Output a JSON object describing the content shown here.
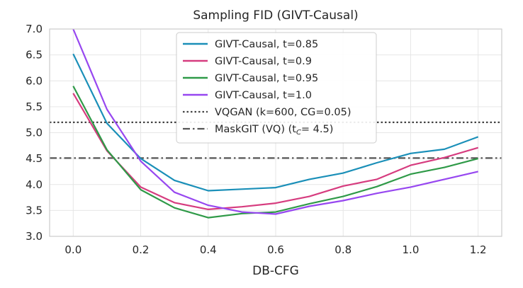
{
  "chart_data": {
    "type": "line",
    "title": "Sampling FID (GIVT-Causal)",
    "xlabel": "DB-CFG",
    "ylabel": "",
    "xlim": [
      -0.07,
      1.27
    ],
    "ylim": [
      3.0,
      7.0
    ],
    "xticks": [
      0.0,
      0.2,
      0.4,
      0.6,
      0.8,
      1.0,
      1.2
    ],
    "xtick_labels": [
      "0.0",
      "0.2",
      "0.4",
      "0.6",
      "0.8",
      "1.0",
      "1.2"
    ],
    "yticks": [
      3.0,
      3.5,
      4.0,
      4.5,
      5.0,
      5.5,
      6.0,
      6.5,
      7.0
    ],
    "ytick_labels": [
      "3.0",
      "3.5",
      "4.0",
      "4.5",
      "5.0",
      "5.5",
      "6.0",
      "6.5",
      "7.0"
    ],
    "grid": true,
    "legend_position": "top-center",
    "x": [
      0.0,
      0.1,
      0.2,
      0.3,
      0.4,
      0.5,
      0.6,
      0.7,
      0.8,
      0.9,
      1.0,
      1.1,
      1.2
    ],
    "series": [
      {
        "name": "GIVT-Causal, t=0.85",
        "color": "#1a8fb8",
        "values": [
          6.52,
          5.18,
          4.5,
          4.08,
          3.88,
          3.91,
          3.94,
          4.1,
          4.22,
          4.42,
          4.6,
          4.68,
          4.92
        ]
      },
      {
        "name": "GIVT-Causal, t=0.9",
        "color": "#d63c7f",
        "values": [
          5.76,
          4.65,
          3.95,
          3.65,
          3.52,
          3.57,
          3.64,
          3.77,
          3.97,
          4.1,
          4.37,
          4.52,
          4.71
        ]
      },
      {
        "name": "GIVT-Causal, t=0.95",
        "color": "#2f9a48",
        "values": [
          5.9,
          4.67,
          3.9,
          3.55,
          3.36,
          3.44,
          3.47,
          3.63,
          3.77,
          3.96,
          4.2,
          4.33,
          4.5
        ]
      },
      {
        "name": "GIVT-Causal, t=1.0",
        "color": "#9747f0",
        "values": [
          7.0,
          5.45,
          4.45,
          3.85,
          3.6,
          3.47,
          3.43,
          3.58,
          3.69,
          3.83,
          3.95,
          4.1,
          4.25
        ]
      }
    ],
    "reference_lines": [
      {
        "name": "VQGAN (k=600, CG=0.05)",
        "value": 5.2,
        "style": "dotted",
        "color": "#444444"
      },
      {
        "name": "MaskGIT (VQ) (t",
        "name_sub": "C",
        "name_suffix": "= 4.5)",
        "value": 4.51,
        "style": "dashdot",
        "color": "#555555"
      }
    ]
  }
}
